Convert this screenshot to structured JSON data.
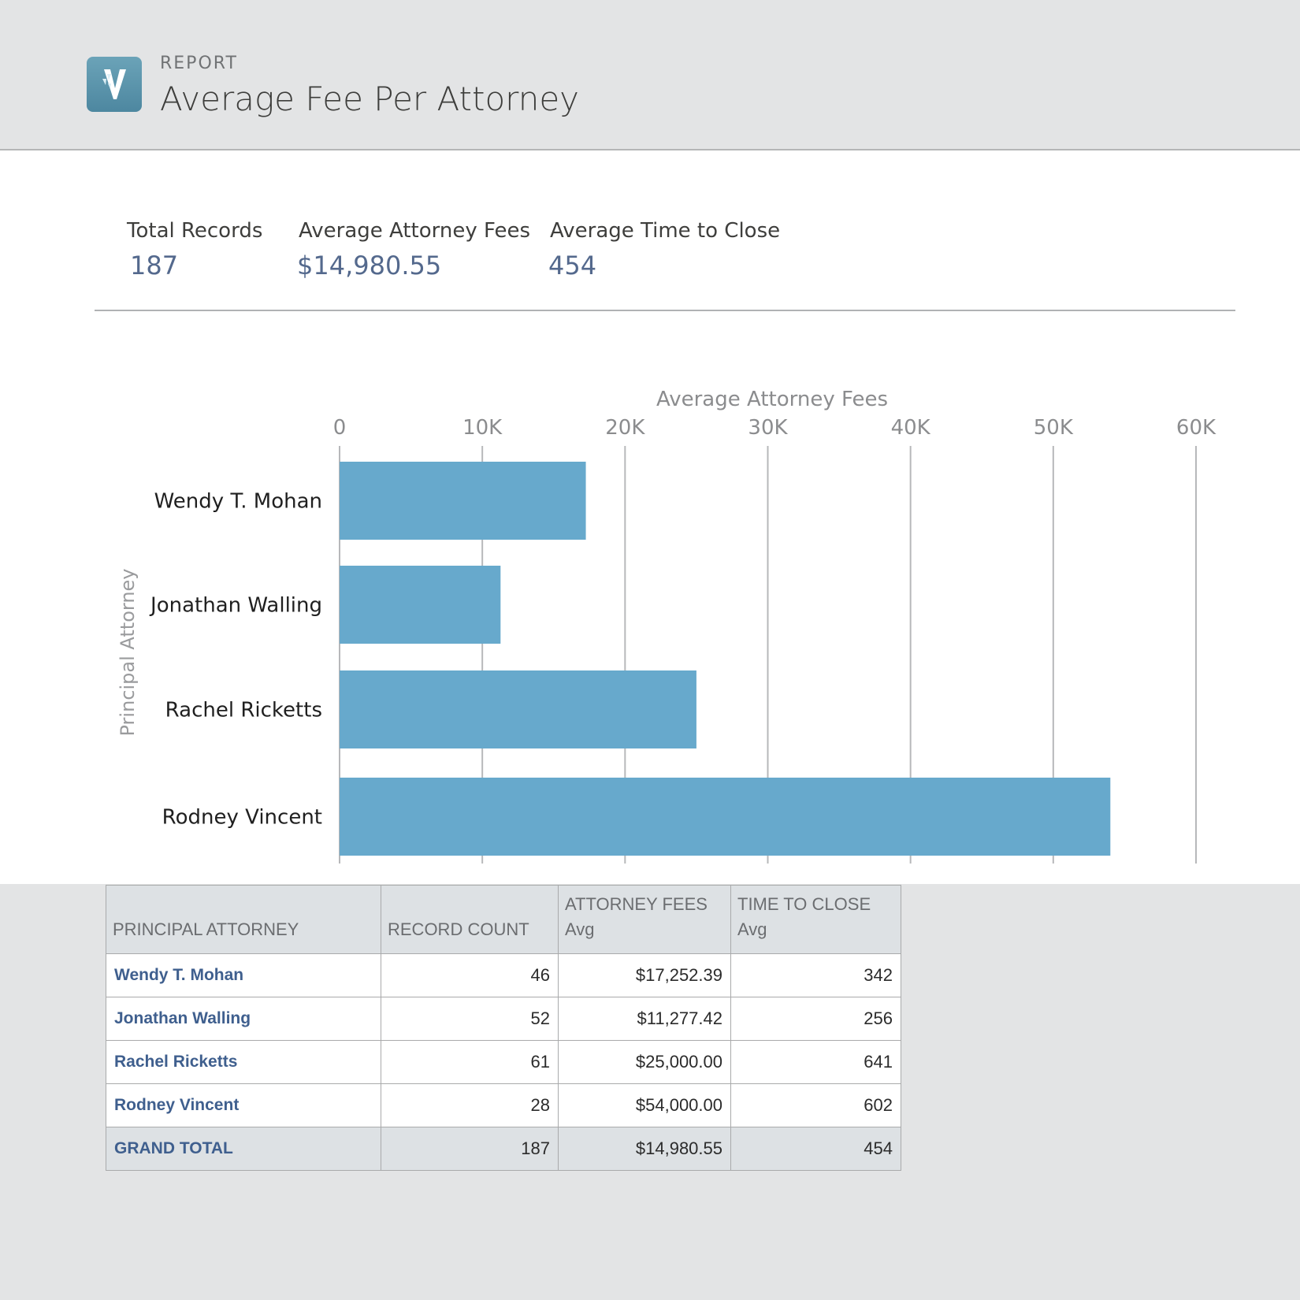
{
  "header": {
    "kicker": "REPORT",
    "title": "Average Fee Per Attorney",
    "icon": "report-app-icon"
  },
  "kpis": [
    {
      "label": "Total Records",
      "value": "187"
    },
    {
      "label": "Average Attorney Fees",
      "value": "$14,980.55"
    },
    {
      "label": "Average Time to Close",
      "value": "454"
    }
  ],
  "chart_data": {
    "type": "bar",
    "orientation": "horizontal",
    "title": "Average Attorney Fees",
    "xlabel": "Average Attorney Fees",
    "ylabel": "Principal Attorney",
    "categories": [
      "Wendy T. Mohan",
      "Jonathan Walling",
      "Rachel Ricketts",
      "Rodney Vincent"
    ],
    "values": [
      17252.39,
      11277.42,
      25000.0,
      54000.0
    ],
    "xlim": [
      0,
      60000
    ],
    "ticks": [
      0,
      10000,
      20000,
      30000,
      40000,
      50000,
      60000
    ],
    "tick_labels": [
      "0",
      "10K",
      "20K",
      "30K",
      "40K",
      "50K",
      "60K"
    ],
    "bar_color": "#67a9cc",
    "grid": true
  },
  "table": {
    "columns": [
      {
        "label": "PRINCIPAL ATTORNEY",
        "sub": ""
      },
      {
        "label": "RECORD COUNT",
        "sub": ""
      },
      {
        "label": "ATTORNEY FEES",
        "sub": "Avg"
      },
      {
        "label": "TIME TO CLOSE",
        "sub": "Avg"
      }
    ],
    "rows": [
      {
        "name": "Wendy T. Mohan",
        "count": "46",
        "fees": "$17,252.39",
        "time": "342"
      },
      {
        "name": "Jonathan Walling",
        "count": "52",
        "fees": "$11,277.42",
        "time": "256"
      },
      {
        "name": "Rachel Ricketts",
        "count": "61",
        "fees": "$25,000.00",
        "time": "641"
      },
      {
        "name": "Rodney Vincent",
        "count": "28",
        "fees": "$54,000.00",
        "time": "602"
      }
    ],
    "total": {
      "name": "GRAND TOTAL",
      "count": "187",
      "fees": "$14,980.55",
      "time": "454"
    }
  }
}
